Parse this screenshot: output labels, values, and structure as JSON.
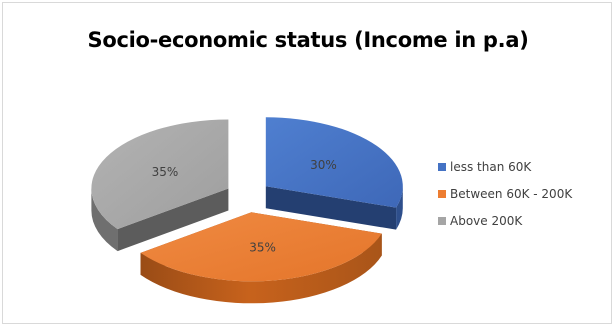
{
  "chart_data": {
    "type": "pie",
    "title": "Socio-economic status (Income in p.a)",
    "categories": [
      "less than 60K",
      "Between 60K - 200K",
      "Above 200K"
    ],
    "values": [
      30,
      35,
      35
    ],
    "data_labels": [
      "30%",
      "35%",
      "35%"
    ],
    "colors": [
      "#4472c4",
      "#ed7d31",
      "#a5a5a5"
    ],
    "style": "3d-exploded",
    "legend_position": "right"
  }
}
